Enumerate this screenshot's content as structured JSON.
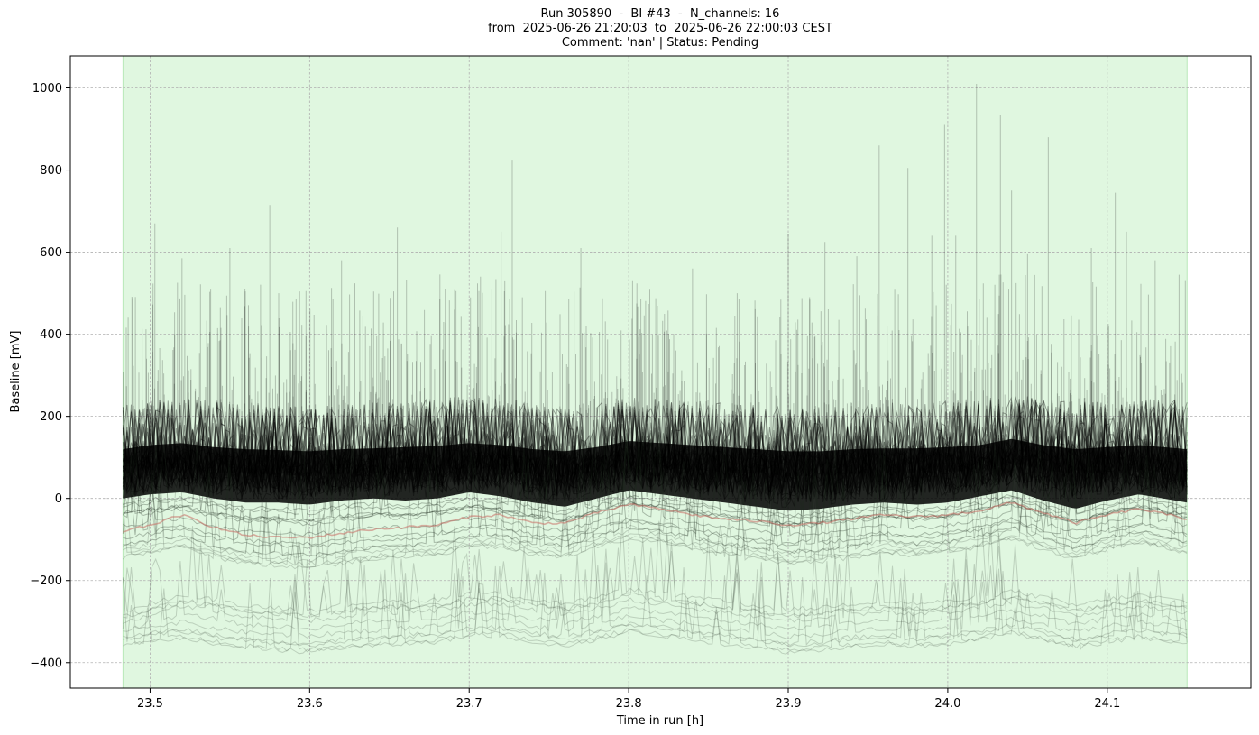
{
  "chart_data": {
    "type": "line",
    "title_lines": [
      "Run 305890  -  BI #43  -  N_channels: 16",
      "from  2025-06-26 21:20:03  to  2025-06-26 22:00:03 CEST",
      "Comment: 'nan' | Status: Pending"
    ],
    "xlabel": "Time in run [h]",
    "ylabel": "Baseline [mV]",
    "xlim": [
      23.45,
      24.19
    ],
    "ylim": [
      -462,
      1078
    ],
    "xticks": [
      23.5,
      23.6,
      23.7,
      23.8,
      23.9,
      24.0,
      24.1
    ],
    "xtick_labels": [
      "23.5",
      "23.6",
      "23.7",
      "23.8",
      "23.9",
      "24.0",
      "24.1"
    ],
    "yticks": [
      -400,
      -200,
      0,
      200,
      400,
      600,
      800,
      1000
    ],
    "ytick_labels": [
      "−400",
      "−200",
      "0",
      "200",
      "400",
      "600",
      "800",
      "1000"
    ],
    "grid": true,
    "status_band": {
      "x_start": 23.483,
      "x_end": 24.15,
      "color": "#e0f7e0",
      "edge_color": "#b8e8b8"
    },
    "series_color": "#000000",
    "highlight_color": "#c86e64",
    "x_points": [
      23.483,
      23.5,
      23.52,
      23.54,
      23.56,
      23.58,
      23.6,
      23.62,
      23.64,
      23.66,
      23.68,
      23.7,
      23.72,
      23.74,
      23.76,
      23.78,
      23.8,
      23.82,
      23.84,
      23.86,
      23.88,
      23.9,
      23.92,
      23.94,
      23.96,
      23.98,
      24.0,
      24.02,
      24.04,
      24.06,
      24.08,
      24.1,
      24.12,
      24.15
    ],
    "baseline_envelope": [
      {
        "name": "upper_band",
        "values": [
          200,
          215,
          220,
          210,
          205,
          200,
          195,
          200,
          205,
          210,
          215,
          220,
          215,
          205,
          195,
          205,
          220,
          215,
          210,
          205,
          200,
          195,
          195,
          200,
          205,
          205,
          210,
          215,
          225,
          215,
          205,
          210,
          215,
          210
        ]
      },
      {
        "name": "dense_median",
        "values": [
          60,
          70,
          75,
          65,
          60,
          58,
          55,
          60,
          62,
          65,
          68,
          75,
          70,
          60,
          55,
          65,
          80,
          75,
          70,
          65,
          60,
          55,
          55,
          60,
          62,
          62,
          65,
          70,
          85,
          70,
          60,
          65,
          70,
          60
        ]
      },
      {
        "name": "lower_edge",
        "values": [
          -5,
          5,
          10,
          -5,
          -15,
          -15,
          -20,
          -10,
          -5,
          -10,
          -5,
          10,
          0,
          -15,
          -25,
          -5,
          15,
          5,
          -5,
          -15,
          -25,
          -35,
          -30,
          -20,
          -15,
          -20,
          -15,
          0,
          15,
          -10,
          -30,
          -10,
          5,
          -15
        ]
      },
      {
        "name": "highlight_channel",
        "values": [
          -80,
          -65,
          -40,
          -70,
          -90,
          -95,
          -95,
          -85,
          -75,
          -70,
          -65,
          -45,
          -40,
          -60,
          -60,
          -35,
          -15,
          -25,
          -40,
          -50,
          -55,
          -65,
          -60,
          -50,
          -40,
          -45,
          -40,
          -30,
          -10,
          -35,
          -60,
          -40,
          -25,
          -50
        ]
      },
      {
        "name": "low_channel_1",
        "values": [
          -120,
          -110,
          -95,
          -120,
          -135,
          -140,
          -145,
          -135,
          -125,
          -120,
          -115,
          -95,
          -95,
          -115,
          -120,
          -95,
          -75,
          -85,
          -100,
          -115,
          -125,
          -135,
          -130,
          -120,
          -110,
          -115,
          -110,
          -95,
          -75,
          -100,
          -125,
          -100,
          -85,
          -110
        ]
      },
      {
        "name": "low_channel_2",
        "values": [
          -300,
          -280,
          -260,
          -270,
          -285,
          -290,
          -295,
          -285,
          -275,
          -275,
          -270,
          -255,
          -255,
          -270,
          -280,
          -265,
          -245,
          -255,
          -265,
          -275,
          -285,
          -295,
          -290,
          -280,
          -275,
          -280,
          -275,
          -265,
          -250,
          -265,
          -285,
          -270,
          -260,
          -275
        ]
      },
      {
        "name": "low_channel_3",
        "values": [
          -340,
          -330,
          -320,
          -335,
          -345,
          -350,
          -355,
          -345,
          -340,
          -335,
          -330,
          -315,
          -315,
          -330,
          -340,
          -325,
          -305,
          -315,
          -325,
          -335,
          -345,
          -355,
          -350,
          -340,
          -335,
          -340,
          -335,
          -325,
          -310,
          -325,
          -345,
          -330,
          -320,
          -335
        ]
      }
    ],
    "notable_spikes": [
      {
        "x": 23.503,
        "y": 670
      },
      {
        "x": 23.52,
        "y": 585
      },
      {
        "x": 23.55,
        "y": 610
      },
      {
        "x": 23.575,
        "y": 715
      },
      {
        "x": 23.62,
        "y": 580
      },
      {
        "x": 23.655,
        "y": 660
      },
      {
        "x": 23.685,
        "y": 510
      },
      {
        "x": 23.72,
        "y": 650
      },
      {
        "x": 23.727,
        "y": 825
      },
      {
        "x": 23.77,
        "y": 610
      },
      {
        "x": 23.805,
        "y": 475
      },
      {
        "x": 23.84,
        "y": 560
      },
      {
        "x": 23.868,
        "y": 500
      },
      {
        "x": 23.9,
        "y": 645
      },
      {
        "x": 23.923,
        "y": 625
      },
      {
        "x": 23.943,
        "y": 590
      },
      {
        "x": 23.957,
        "y": 860
      },
      {
        "x": 23.975,
        "y": 805
      },
      {
        "x": 23.99,
        "y": 640
      },
      {
        "x": 23.998,
        "y": 910
      },
      {
        "x": 24.005,
        "y": 640
      },
      {
        "x": 24.018,
        "y": 1010
      },
      {
        "x": 24.033,
        "y": 935
      },
      {
        "x": 24.04,
        "y": 750
      },
      {
        "x": 24.05,
        "y": 595
      },
      {
        "x": 24.063,
        "y": 880
      },
      {
        "x": 24.09,
        "y": 610
      },
      {
        "x": 24.105,
        "y": 745
      },
      {
        "x": 24.112,
        "y": 650
      },
      {
        "x": 24.13,
        "y": 580
      },
      {
        "x": 24.145,
        "y": 545
      }
    ]
  }
}
